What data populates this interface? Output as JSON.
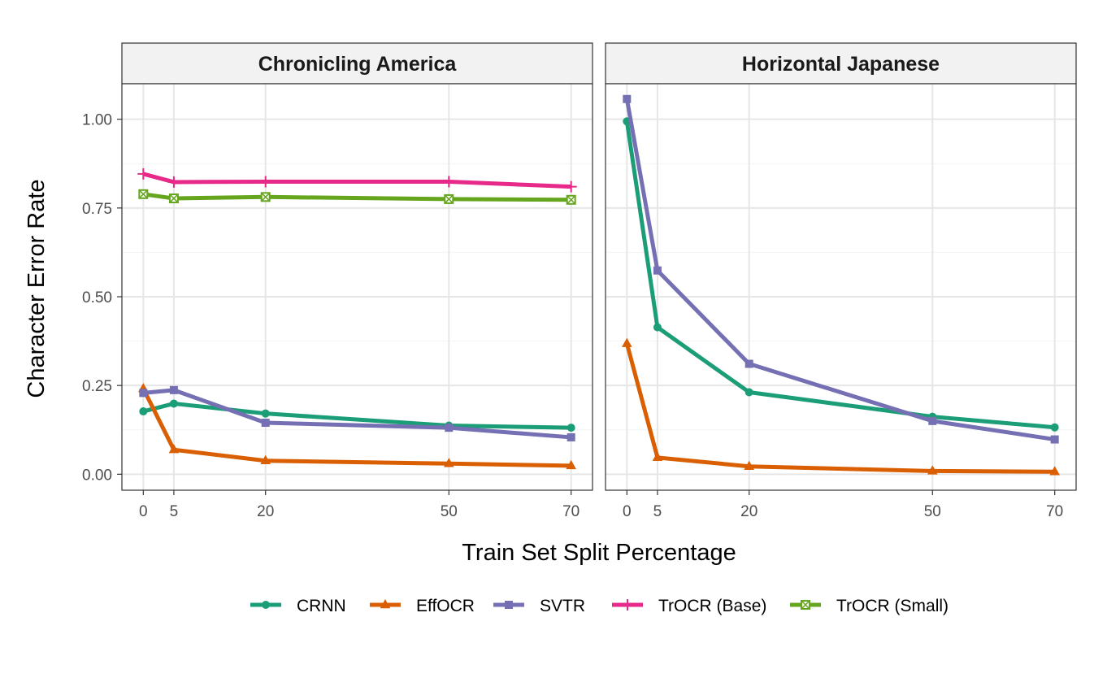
{
  "chart_data": {
    "type": "line",
    "xlabel": "Train Set Split Percentage",
    "ylabel": "Character Error Rate",
    "x": [
      0,
      5,
      20,
      50,
      70
    ],
    "x_ticks": [
      "0",
      "5",
      "20",
      "50",
      "70"
    ],
    "y_ticks": [
      "0.00",
      "0.25",
      "0.50",
      "0.75",
      "1.00"
    ],
    "y_tick_values": [
      0,
      0.25,
      0.5,
      0.75,
      1.0
    ],
    "xlim": [
      -3.5,
      73.5
    ],
    "ylim": [
      -0.045,
      1.1
    ],
    "grid": true,
    "legend_position": "bottom",
    "panels": [
      {
        "title": "Chronicling America",
        "series": [
          {
            "name": "CRNN",
            "values": [
              0.177,
              0.199,
              0.171,
              0.137,
              0.131
            ]
          },
          {
            "name": "EffOCR",
            "values": [
              0.241,
              0.069,
              0.038,
              0.03,
              0.024
            ]
          },
          {
            "name": "SVTR",
            "values": [
              0.229,
              0.237,
              0.145,
              0.131,
              0.104
            ]
          },
          {
            "name": "TrOCR (Base)",
            "values": [
              0.846,
              0.823,
              0.824,
              0.824,
              0.81
            ]
          },
          {
            "name": "TrOCR (Small)",
            "values": [
              0.789,
              0.777,
              0.781,
              0.775,
              0.773
            ]
          }
        ]
      },
      {
        "title": "Horizontal Japanese",
        "series": [
          {
            "name": "CRNN",
            "values": [
              0.994,
              0.414,
              0.231,
              0.162,
              0.132
            ]
          },
          {
            "name": "EffOCR",
            "values": [
              0.368,
              0.047,
              0.022,
              0.009,
              0.007
            ]
          },
          {
            "name": "SVTR",
            "values": [
              1.057,
              0.574,
              0.311,
              0.15,
              0.098
            ]
          },
          {
            "name": "TrOCR (Base)",
            "values": [
              null,
              null,
              null,
              null,
              null
            ]
          },
          {
            "name": "TrOCR (Small)",
            "values": [
              null,
              null,
              null,
              null,
              null
            ]
          }
        ]
      }
    ],
    "legend": [
      {
        "name": "CRNN",
        "color": "#1b9e77",
        "marker": "circle"
      },
      {
        "name": "EffOCR",
        "color": "#d95f02",
        "marker": "triangle"
      },
      {
        "name": "SVTR",
        "color": "#7570b3",
        "marker": "square"
      },
      {
        "name": "TrOCR (Base)",
        "color": "#e7298a",
        "marker": "plus"
      },
      {
        "name": "TrOCR (Small)",
        "color": "#66a61e",
        "marker": "square-x"
      }
    ]
  }
}
